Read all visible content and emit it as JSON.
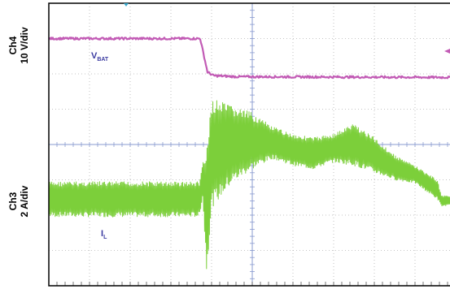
{
  "chart_data": {
    "type": "line",
    "title": "",
    "xlabel": "",
    "ylabel": "",
    "x_divisions": 10,
    "y_divisions": 8,
    "grid": true,
    "channels": [
      {
        "id": "ch4",
        "label_line1": "Ch4",
        "label_line2": "10 V/div",
        "color": "#c25bb5"
      },
      {
        "id": "ch3",
        "label_line1": "Ch3",
        "label_line2": "2 A/div",
        "color": "#7ccf3a"
      }
    ],
    "series": [
      {
        "name": "VBAT",
        "label_main": "V",
        "label_sub": "BAT",
        "channel": "ch4",
        "color": "#c25bb5",
        "unit_div": "div",
        "points": [
          [
            0,
            7.0
          ],
          [
            3.72,
            7.0
          ],
          [
            3.9,
            6.05
          ],
          [
            4.05,
            5.95
          ],
          [
            4.6,
            5.92
          ],
          [
            10,
            5.9
          ]
        ]
      },
      {
        "name": "IL",
        "label_main": "I",
        "label_sub": "L",
        "channel": "ch3",
        "color": "#7ccf3a",
        "envelope": [
          {
            "x": 0,
            "min": 1.95,
            "max": 2.95
          },
          {
            "x": 3.7,
            "min": 1.95,
            "max": 2.95
          },
          {
            "x": 3.78,
            "min": 2.5,
            "max": 3.5
          },
          {
            "x": 3.88,
            "min": 0.35,
            "max": 3.8
          },
          {
            "x": 4.0,
            "min": 2.2,
            "max": 5.3
          },
          {
            "x": 4.5,
            "min": 2.9,
            "max": 5.1
          },
          {
            "x": 5.0,
            "min": 3.3,
            "max": 4.9
          },
          {
            "x": 5.5,
            "min": 3.6,
            "max": 4.5
          },
          {
            "x": 6.0,
            "min": 3.4,
            "max": 4.3
          },
          {
            "x": 6.5,
            "min": 3.3,
            "max": 4.2
          },
          {
            "x": 7.0,
            "min": 3.5,
            "max": 4.3
          },
          {
            "x": 7.5,
            "min": 3.4,
            "max": 4.6
          },
          {
            "x": 8.0,
            "min": 3.2,
            "max": 4.2
          },
          {
            "x": 8.5,
            "min": 3.0,
            "max": 3.7
          },
          {
            "x": 9.0,
            "min": 2.9,
            "max": 3.4
          },
          {
            "x": 9.55,
            "min": 2.45,
            "max": 3.0
          },
          {
            "x": 9.65,
            "min": 2.25,
            "max": 2.55
          },
          {
            "x": 10.0,
            "min": 2.3,
            "max": 2.55
          },
          {
            "x": 15.0,
            "min": 2.3,
            "max": 2.55
          }
        ]
      }
    ]
  }
}
